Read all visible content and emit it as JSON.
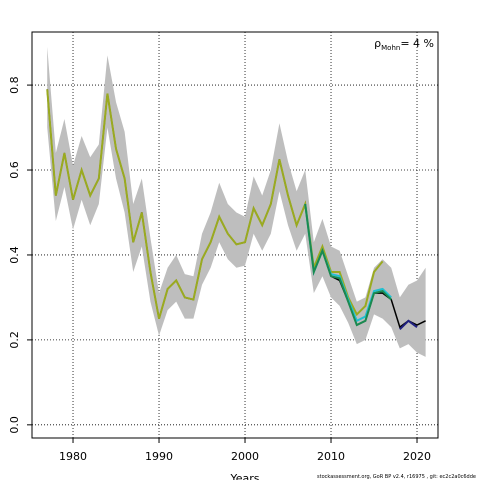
{
  "chart_data": {
    "type": "line",
    "xlabel": "Years",
    "annotation": {
      "symbol": "ρ",
      "subscript": "Mohn",
      "text": "= 4 %"
    },
    "footer": "stockassessment.org, GoR BP v2.4, r16975 , git: ec2c2a0c6dde",
    "x": [
      1977,
      1978,
      1979,
      1980,
      1981,
      1982,
      1983,
      1984,
      1985,
      1986,
      1987,
      1988,
      1989,
      1990,
      1991,
      1992,
      1993,
      1994,
      1995,
      1996,
      1997,
      1998,
      1999,
      2000,
      2001,
      2002,
      2003,
      2004,
      2005,
      2006,
      2007,
      2008,
      2009,
      2010,
      2011,
      2012,
      2013,
      2014,
      2015,
      2016,
      2017,
      2018,
      2019,
      2020,
      2021
    ],
    "band": {
      "color": "#bebebe",
      "upper": [
        0.89,
        0.64,
        0.72,
        0.61,
        0.68,
        0.63,
        0.66,
        0.87,
        0.76,
        0.69,
        0.52,
        0.58,
        0.44,
        0.31,
        0.37,
        0.4,
        0.355,
        0.35,
        0.45,
        0.5,
        0.57,
        0.52,
        0.5,
        0.49,
        0.585,
        0.54,
        0.6,
        0.71,
        0.62,
        0.55,
        0.6,
        0.43,
        0.485,
        0.42,
        0.41,
        0.35,
        0.29,
        0.3,
        0.37,
        0.39,
        0.37,
        0.3,
        0.33,
        0.34,
        0.37
      ],
      "lower": [
        0.7,
        0.48,
        0.56,
        0.46,
        0.53,
        0.47,
        0.52,
        0.7,
        0.58,
        0.5,
        0.36,
        0.42,
        0.29,
        0.21,
        0.27,
        0.29,
        0.25,
        0.25,
        0.33,
        0.37,
        0.43,
        0.39,
        0.37,
        0.375,
        0.45,
        0.41,
        0.45,
        0.55,
        0.47,
        0.41,
        0.45,
        0.31,
        0.35,
        0.3,
        0.28,
        0.24,
        0.19,
        0.2,
        0.26,
        0.25,
        0.23,
        0.18,
        0.19,
        0.17,
        0.16
      ]
    },
    "series": [
      {
        "color": "#000000",
        "values": [
          0.79,
          0.54,
          0.64,
          0.53,
          0.6,
          0.54,
          0.58,
          0.78,
          0.65,
          0.58,
          0.43,
          0.5,
          0.36,
          0.25,
          0.32,
          0.34,
          0.3,
          0.295,
          0.39,
          0.43,
          0.49,
          0.45,
          0.425,
          0.43,
          0.51,
          0.47,
          0.52,
          0.625,
          0.54,
          0.47,
          0.52,
          0.36,
          0.41,
          0.35,
          0.34,
          0.29,
          0.235,
          0.245,
          0.31,
          0.31,
          0.295,
          0.23,
          0.245,
          0.235,
          0.245
        ]
      },
      {
        "color": "#9aaa20",
        "values": [
          0.79,
          0.54,
          0.64,
          0.53,
          0.6,
          0.54,
          0.58,
          0.78,
          0.65,
          0.58,
          0.43,
          0.5,
          0.36,
          0.25,
          0.32,
          0.34,
          0.3,
          0.295,
          0.39,
          0.43,
          0.49,
          0.45,
          0.425,
          0.43,
          0.51,
          0.47,
          0.52,
          0.625,
          0.54,
          0.47,
          0.52,
          0.37,
          0.42,
          0.36,
          0.36,
          0.3,
          0.26,
          0.28,
          0.36,
          0.385,
          null,
          null,
          null,
          null,
          null
        ]
      },
      {
        "color": "#20c0d0",
        "values": [
          null,
          null,
          null,
          null,
          null,
          null,
          null,
          null,
          null,
          null,
          null,
          null,
          null,
          null,
          null,
          null,
          null,
          null,
          null,
          null,
          null,
          null,
          null,
          null,
          null,
          null,
          null,
          null,
          null,
          null,
          0.52,
          0.36,
          0.41,
          0.355,
          0.35,
          0.295,
          0.245,
          0.255,
          0.315,
          0.32,
          0.3,
          null,
          null,
          null,
          null
        ]
      },
      {
        "color": "#1a8a50",
        "values": [
          null,
          null,
          null,
          null,
          null,
          null,
          null,
          null,
          null,
          null,
          null,
          null,
          null,
          null,
          null,
          null,
          null,
          null,
          null,
          null,
          null,
          null,
          null,
          null,
          null,
          null,
          null,
          null,
          null,
          null,
          0.52,
          0.36,
          0.41,
          0.35,
          0.345,
          0.29,
          0.235,
          0.245,
          0.31,
          0.315,
          0.295,
          null,
          null,
          null,
          null
        ]
      },
      {
        "color": "#202080",
        "values": [
          null,
          null,
          null,
          null,
          null,
          null,
          null,
          null,
          null,
          null,
          null,
          null,
          null,
          null,
          null,
          null,
          null,
          null,
          null,
          null,
          null,
          null,
          null,
          null,
          null,
          null,
          null,
          null,
          null,
          null,
          null,
          null,
          null,
          null,
          null,
          null,
          null,
          null,
          null,
          null,
          null,
          0.225,
          0.245,
          0.23,
          null
        ]
      }
    ],
    "xlim": [
      1975.23,
      2022.44
    ],
    "ylim": [
      -0.031,
      0.925
    ],
    "xticks": [
      1980,
      1990,
      2000,
      2010,
      2020
    ],
    "yticks": [
      {
        "value": 0,
        "label": "0.0"
      },
      0.2,
      0.4,
      0.6,
      0.8
    ],
    "grid": true
  }
}
